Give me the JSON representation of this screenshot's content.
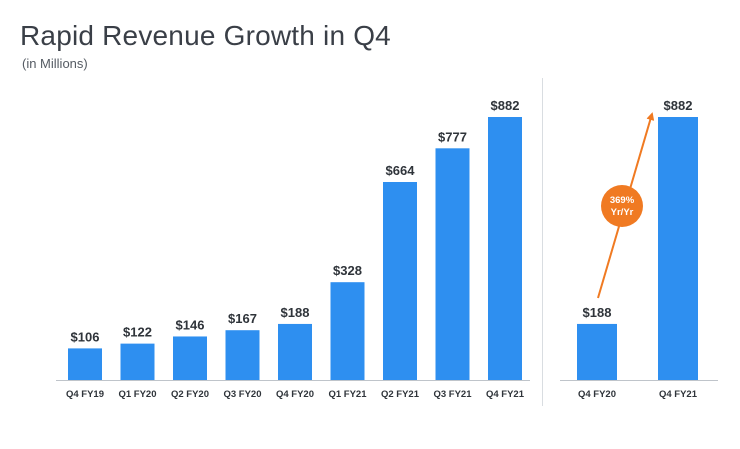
{
  "header": {
    "title": "Rapid Revenue Growth in Q4",
    "subtitle": "(in Millions)"
  },
  "colors": {
    "bar": "#2e8ff0",
    "accent": "#f07a22",
    "axis": "#bfc4ca",
    "divider": "#d9dde1"
  },
  "chart_data": [
    {
      "type": "bar",
      "title": "Rapid Revenue Growth in Q4",
      "subtitle": "(in Millions)",
      "categories": [
        "Q4 FY19",
        "Q1 FY20",
        "Q2 FY20",
        "Q3 FY20",
        "Q4 FY20",
        "Q1 FY21",
        "Q2 FY21",
        "Q3 FY21",
        "Q4 FY21"
      ],
      "values": [
        106,
        122,
        146,
        167,
        188,
        328,
        664,
        777,
        882
      ],
      "labels": [
        "$106",
        "$122",
        "$146",
        "$167",
        "$188",
        "$328",
        "$664",
        "$777",
        "$882"
      ],
      "ylim": [
        0,
        882
      ],
      "grid": false
    },
    {
      "type": "bar",
      "categories": [
        "Q4 FY20",
        "Q4 FY21"
      ],
      "values": [
        188,
        882
      ],
      "labels": [
        "$188",
        "$882"
      ],
      "ylim": [
        0,
        882
      ],
      "grid": false,
      "annotation": {
        "line1": "369%",
        "line2": "Yr/Yr"
      }
    }
  ]
}
